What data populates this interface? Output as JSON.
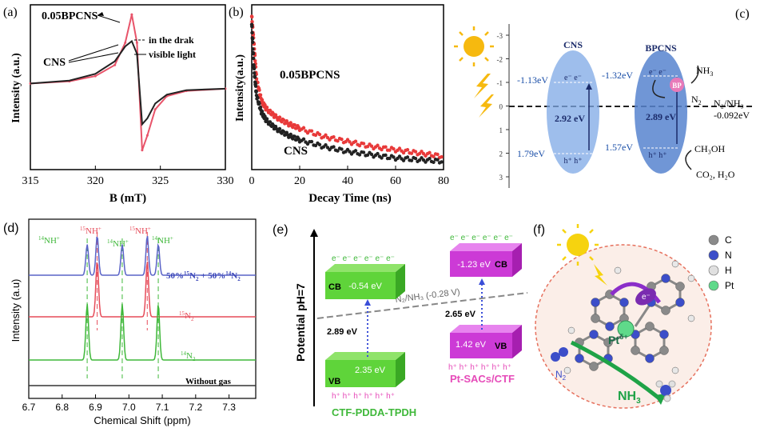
{
  "panels": {
    "a": {
      "label": "(a)",
      "chart_data": {
        "type": "line",
        "xlabel": "B (mT)",
        "ylabel": "Intensity (a.u.)",
        "xlim": [
          315,
          330
        ],
        "xticks": [
          "315",
          "320",
          "325",
          "330"
        ],
        "series": [
          {
            "name": "0.05BPCNS",
            "color": "#e8546a",
            "x": [
              315,
              318,
              320,
              321.5,
              322.3,
              322.8,
              323.2,
              323.6,
              324,
              324.6,
              325.5,
              327,
              330
            ],
            "y": [
              0.05,
              0.08,
              0.15,
              0.3,
              0.6,
              0.98,
              0.6,
              -0.85,
              -0.65,
              -0.3,
              -0.12,
              -0.05,
              -0.02
            ]
          },
          {
            "name": "CNS",
            "color": "#222222",
            "x": [
              315,
              318,
              320,
              321.5,
              322.3,
              322.8,
              323.2,
              323.6,
              324,
              324.6,
              325.5,
              327,
              330
            ],
            "y": [
              0.05,
              0.09,
              0.18,
              0.35,
              0.55,
              0.62,
              0.45,
              -0.5,
              -0.42,
              -0.22,
              -0.1,
              -0.04,
              -0.02
            ]
          }
        ],
        "annotations": [
          "0.05BPCNS",
          "in the drak",
          "visible light",
          "CNS"
        ]
      }
    },
    "b": {
      "label": "(b)",
      "chart_data": {
        "type": "scatter",
        "xlabel": "Decay Time (ns)",
        "ylabel": "Intensity(a.u.)",
        "xlim": [
          0,
          80
        ],
        "xticks": [
          "0",
          "20",
          "40",
          "60",
          "80"
        ],
        "series": [
          {
            "name": "0.05BPCNS",
            "color": "#e83a3a",
            "x": [
              0,
              1,
              2,
              4,
              6,
              10,
              15,
              20,
              30,
              40,
              50,
              60,
              70,
              80
            ],
            "y": [
              0.93,
              0.75,
              0.55,
              0.42,
              0.37,
              0.32,
              0.28,
              0.25,
              0.2,
              0.17,
              0.14,
              0.12,
              0.1,
              0.08
            ]
          },
          {
            "name": "CNS",
            "color": "#222222",
            "x": [
              0,
              1,
              2,
              4,
              6,
              10,
              15,
              20,
              30,
              40,
              50,
              60,
              70,
              80
            ],
            "y": [
              0.88,
              0.6,
              0.45,
              0.35,
              0.3,
              0.25,
              0.21,
              0.18,
              0.14,
              0.11,
              0.09,
              0.07,
              0.06,
              0.05
            ]
          }
        ],
        "annotations": [
          "0.05BPCNS",
          "CNS"
        ]
      }
    },
    "c": {
      "label": "(c)",
      "yticks": [
        "-3",
        "-2",
        "-1",
        "0",
        "1",
        "2",
        "3"
      ],
      "cns_title": "CNS",
      "bpcns_title": "BPCNS",
      "cns_cb": "-1.13eV",
      "cns_gap": "2.92 eV",
      "cns_vb": "1.79eV",
      "bp_cb": "-1.32eV",
      "bp_gap": "2.89 eV",
      "bp_vb": "1.57eV",
      "bp_label": "BP",
      "nh3": "NH",
      "nh3_sub": "3",
      "n2": "N",
      "n2_sub": "2",
      "couple_top": "N₂/NH₃",
      "couple_bottom": "-0.092eV",
      "ch3oh": "CH₃OH",
      "co2": "CO₂, H₂O",
      "e_minus": "e⁻ e⁻",
      "h_plus": "h⁺ h⁺"
    },
    "d": {
      "label": "(d)",
      "chart_data": {
        "type": "line",
        "xlabel": "Chemical Shift (ppm)",
        "ylabel": "Intensity (a.u)",
        "xlim": [
          6.7,
          7.38
        ],
        "xticks": [
          "6.7",
          "6.8",
          "6.9",
          "7.0",
          "7.1",
          "7.2",
          "7.3"
        ],
        "series": [
          {
            "name": "50%15N2 + 50%14N2",
            "color": "#5a63c7",
            "peaks": [
              6.875,
              6.905,
              6.98,
              7.055,
              7.088
            ],
            "heights": [
              0.35,
              0.45,
              0.35,
              0.45,
              0.35
            ]
          },
          {
            "name": "15N2",
            "color": "#e64b59",
            "peaks": [
              6.905,
              7.055
            ],
            "heights": [
              1.0,
              1.0
            ]
          },
          {
            "name": "14N2",
            "color": "#3fb83a",
            "peaks": [
              6.875,
              6.98,
              7.088
            ],
            "heights": [
              1.0,
              1.0,
              1.0
            ]
          },
          {
            "name": "Without gas",
            "color": "#333333",
            "peaks": [],
            "heights": []
          }
        ]
      },
      "label_14nh4": "NH",
      "label_15nh4": "NH",
      "iso14": "14",
      "iso15": "15",
      "plus": "+",
      "mix_label": "50%",
      "mix_15": "15",
      "mix_n2a": "N",
      "mix_plus": " + 50%",
      "mix_14": "14",
      "mix_n2b": "N",
      "sub2": "2",
      "n15_label": "N",
      "n14_label": "N",
      "without_gas": "Without gas"
    },
    "e": {
      "label": "(e)",
      "yaxis": "Potential pH=7",
      "left_cb": "-0.54 eV",
      "left_vb": "2.35 eV",
      "left_gap": "2.89 eV",
      "left_name": "CTF-PDDA-TPDH",
      "right_cb": "-1.23 eV",
      "right_vb": "1.42 eV",
      "right_gap": "2.65 eV",
      "right_name": "Pt-SACs/CTF",
      "cb": "CB",
      "vb": "VB",
      "couple": "N₂/NH₃ (-0.28 V)",
      "electrons": "e⁻ e⁻ e⁻ e⁻ e⁻ e⁻",
      "holes": "h⁺ h⁺ h⁺ h⁺ h⁺ h⁺"
    },
    "f": {
      "label": "(f)",
      "legend": [
        {
          "name": "C",
          "color": "#8a8a8a"
        },
        {
          "name": "N",
          "color": "#3c4ec9"
        },
        {
          "name": "H",
          "color": "#e0e0e0"
        },
        {
          "name": "Pt",
          "color": "#5fd98a"
        }
      ],
      "pt_label": "Pt",
      "pt_sup": "δ+",
      "e_label": "e⁻",
      "n2": "N",
      "n2_sub": "2",
      "nh3": "NH",
      "nh3_sub": "3"
    }
  }
}
